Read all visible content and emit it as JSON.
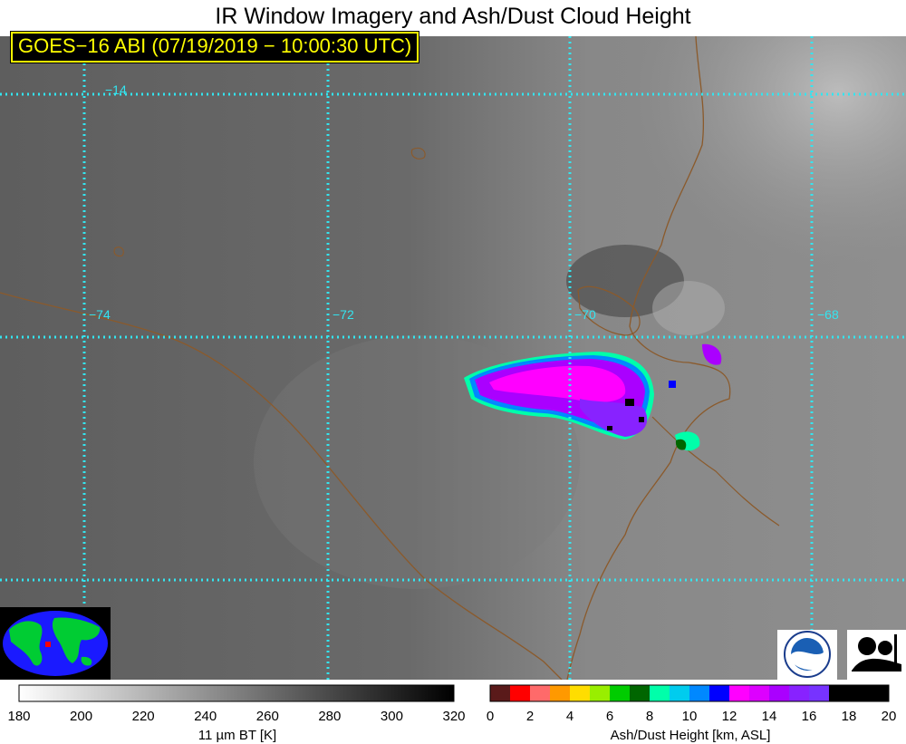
{
  "title": "IR Window Imagery and Ash/Dust Cloud Height",
  "satellite_label": "GOES−16 ABI (07/19/2019 − 10:00:30 UTC)",
  "grid_labels": {
    "lat_top": "−14",
    "lon_74": "−74",
    "lon_72": "−72",
    "lon_70": "−70",
    "lon_68": "−68"
  },
  "logos": {
    "noaa": "NOAA",
    "cimss": "CIMSS"
  },
  "colors": {
    "grid": "#33e5f0",
    "border": "#8b5a2b",
    "label_bg": "#000000",
    "label_fg": "#ffff00"
  },
  "bt_colorbar": {
    "title": "11 µm BT [K]",
    "ticks": [
      "180",
      "200",
      "220",
      "240",
      "260",
      "280",
      "300",
      "320"
    ]
  },
  "height_colorbar": {
    "title": "Ash/Dust Height [km, ASL]",
    "ticks": [
      "0",
      "2",
      "4",
      "6",
      "8",
      "10",
      "12",
      "14",
      "16",
      "18",
      "20"
    ],
    "colors": [
      "#5a1a1a",
      "#ff0000",
      "#ff6a6a",
      "#ff9900",
      "#ffdd00",
      "#99ee00",
      "#00cc00",
      "#006600",
      "#00ffaa",
      "#00ccee",
      "#0088ff",
      "#0000ff",
      "#ff00ff",
      "#dd00ff",
      "#aa00ff",
      "#8822ff",
      "#7733ff",
      "#000000",
      "#000000",
      "#000000"
    ]
  }
}
